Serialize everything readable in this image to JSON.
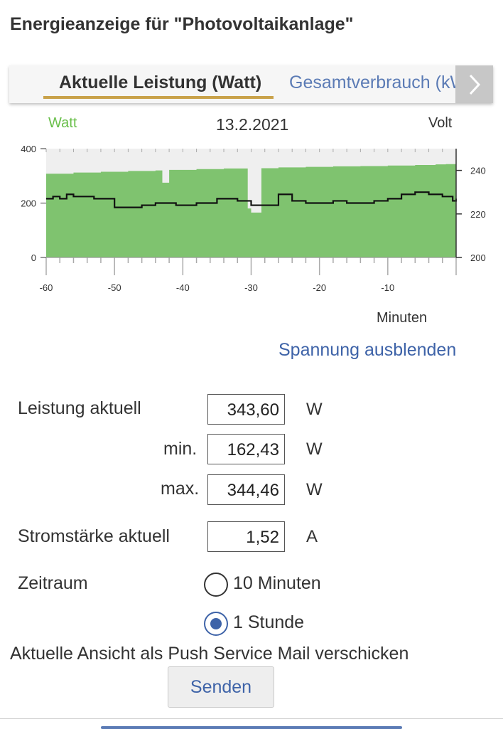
{
  "page": {
    "title": "Energieanzeige für \"Photovoltaikanlage\""
  },
  "tabs": [
    {
      "label": "Aktuelle Leistung (Watt)",
      "active": true
    },
    {
      "label": "Gesamtverbrauch (kWh)",
      "active": false
    }
  ],
  "chart_header": {
    "left_axis_label": "Watt",
    "date": "13.2.2021",
    "right_axis_label": "Volt"
  },
  "chart_data": {
    "type": "area",
    "xlabel": "Minuten",
    "x_ticks": [
      -60,
      -50,
      -40,
      -30,
      -20,
      -10
    ],
    "xlim": [
      -60,
      0
    ],
    "y_left_ticks": [
      0,
      200,
      400
    ],
    "ylim_left": [
      0,
      400
    ],
    "y_right_ticks": [
      200,
      220,
      240
    ],
    "ylim_right": [
      200,
      250
    ],
    "series": [
      {
        "name": "Watt",
        "axis": "left",
        "color": "#7fc36f",
        "style": "area-step",
        "x": [
          -60,
          -56,
          -52,
          -48,
          -44,
          -43,
          -42,
          -38,
          -34,
          -30.5,
          -30,
          -28.5,
          -26,
          -22,
          -18,
          -14,
          -10,
          -6,
          -3,
          -1.5,
          0
        ],
        "y": [
          308,
          312,
          315,
          318,
          320,
          275,
          322,
          325,
          327,
          180,
          165,
          328,
          331,
          333,
          335,
          336,
          338,
          340,
          342,
          343,
          344
        ]
      },
      {
        "name": "Volt",
        "axis": "right",
        "color": "#111111",
        "style": "step-line",
        "x": [
          -60,
          -59,
          -58,
          -57,
          -56,
          -53,
          -50,
          -48,
          -46,
          -44,
          -41,
          -38,
          -35,
          -32,
          -30,
          -28,
          -26,
          -24,
          -22,
          -20,
          -18,
          -16,
          -14,
          -12,
          -10,
          -8,
          -6,
          -4,
          -2,
          -1,
          -0.5,
          0
        ],
        "y": [
          227,
          228,
          227,
          229,
          228,
          227,
          223,
          223,
          224,
          225,
          224,
          225,
          227,
          226,
          224,
          224,
          229,
          226,
          225,
          225,
          226,
          225,
          225,
          226,
          227,
          229,
          230,
          229,
          228,
          228,
          226,
          227
        ]
      }
    ]
  },
  "x_axis_unit": "Minuten",
  "toggle_voltage": "Spannung ausblenden",
  "stats": {
    "power_label": "Leistung aktuell",
    "power_value": "343,60",
    "power_unit": "W",
    "min_label": "min.",
    "min_value": "162,43",
    "min_unit": "W",
    "max_label": "max.",
    "max_value": "344,46",
    "max_unit": "W",
    "current_label": "Stromstärke aktuell",
    "current_value": "1,52",
    "current_unit": "A"
  },
  "timespan": {
    "label": "Zeitraum",
    "options": [
      {
        "label": "10 Minuten",
        "selected": false
      },
      {
        "label": "1 Stunde",
        "selected": true
      }
    ]
  },
  "push": {
    "text": "Aktuelle Ansicht als Push Service Mail verschicken",
    "button_label": "Senden"
  },
  "colors": {
    "accent": "#3e63a8",
    "tab_underline": "#c9a24a",
    "power_area": "#7fc36f",
    "voltage_line": "#111111"
  }
}
